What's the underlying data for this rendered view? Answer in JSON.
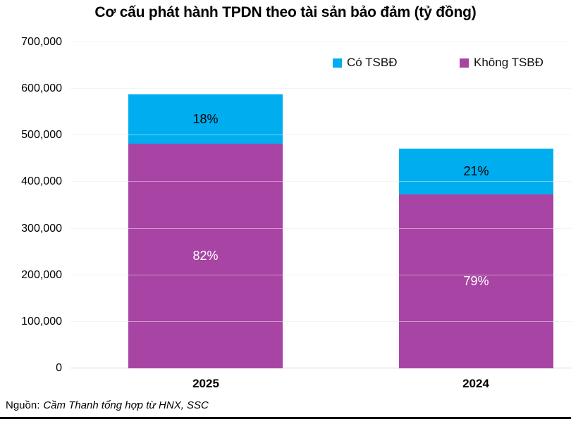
{
  "title": "Cơ cấu phát hành TPDN theo tài sản bảo đảm (tỷ đồng)",
  "legend": [
    {
      "label": "Có TSBĐ",
      "color": "#00AEEF"
    },
    {
      "label": "Không TSBĐ",
      "color": "#A844A4"
    }
  ],
  "source": {
    "label": "Nguồn:",
    "text": "Cầm Thanh tổng hợp từ HNX, SSC"
  },
  "chart_data": {
    "type": "bar",
    "stacked": true,
    "title": "Cơ cấu phát hành TPDN theo tài sản bảo đảm (tỷ đồng)",
    "categories": [
      "2025",
      "2024"
    ],
    "series": [
      {
        "name": "Không TSBĐ",
        "color": "#A844A4",
        "values": [
          482000,
          373000
        ],
        "percent_labels": [
          "82%",
          "79%"
        ],
        "label_color": "#FFFFFF"
      },
      {
        "name": "Có TSBĐ",
        "color": "#00AEEF",
        "values": [
          106000,
          99000
        ],
        "percent_labels": [
          "18%",
          "21%"
        ],
        "label_color": "#000000"
      }
    ],
    "totals": [
      588000,
      472000
    ],
    "xlabel": "",
    "ylabel": "",
    "ylim": [
      0,
      700000
    ],
    "ytick_interval": 100000,
    "ytick_labels": [
      "0",
      "100,000",
      "200,000",
      "300,000",
      "400,000",
      "500,000",
      "600,000",
      "700,000"
    ],
    "grid": true,
    "legend_position": "top-inside"
  }
}
